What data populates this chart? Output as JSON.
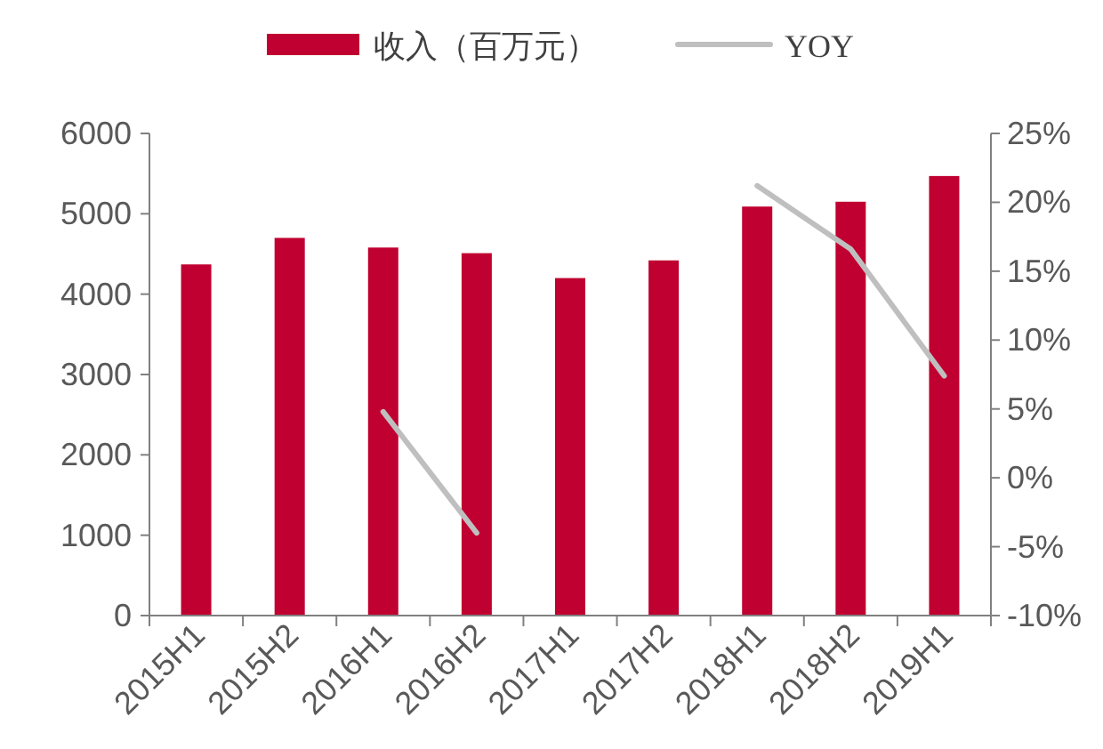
{
  "chart_data": {
    "type": "bar",
    "categories": [
      "2015H1",
      "2015H2",
      "2016H1",
      "2016H2",
      "2017H1",
      "2017H2",
      "2018H1",
      "2018H2",
      "2019H1"
    ],
    "series": [
      {
        "name": "收入（百万元）",
        "color": "#c00030",
        "values": [
          4370,
          4700,
          4580,
          4510,
          4200,
          4420,
          5090,
          5150,
          5470
        ]
      },
      {
        "name": "YOY",
        "type": "line",
        "axis": "y2",
        "color": "#bfbfbf",
        "values": [
          null,
          null,
          4.8,
          -4.0,
          null,
          null,
          21.2,
          16.6,
          7.4
        ]
      }
    ],
    "ylim": [
      0,
      6000
    ],
    "yticks": [
      0,
      1000,
      2000,
      3000,
      4000,
      5000,
      6000
    ],
    "y2lim": [
      -10,
      25
    ],
    "y2ticks": [
      {
        "value": -10,
        "label": "-10%"
      },
      {
        "value": -5,
        "label": "-5%"
      },
      {
        "value": 0,
        "label": "0%"
      },
      {
        "value": 5,
        "label": "5%"
      },
      {
        "value": 10,
        "label": "10%"
      },
      {
        "value": 15,
        "label": "15%"
      },
      {
        "value": 20,
        "label": "20%"
      },
      {
        "value": 25,
        "label": "25%"
      }
    ],
    "legend": "top",
    "grid": false,
    "marker": "none",
    "line_style": "solid"
  }
}
